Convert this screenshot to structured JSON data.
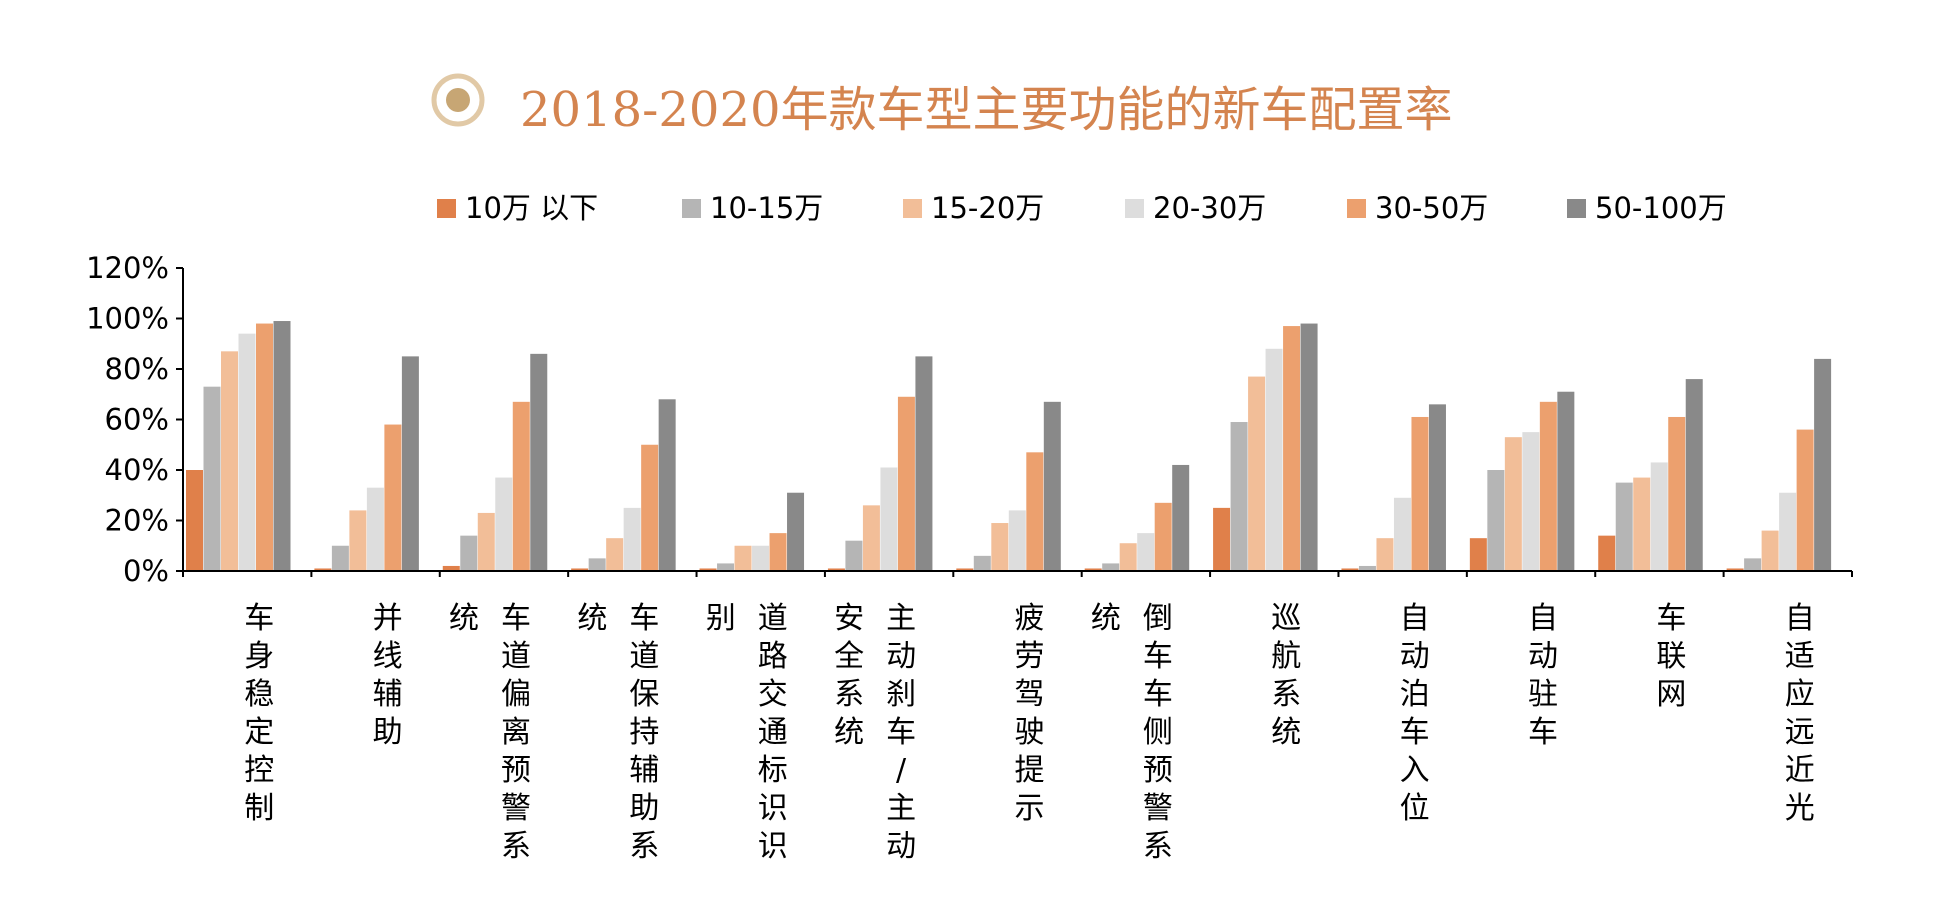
{
  "chart_data": {
    "type": "bar",
    "title": "2018-2020年款车型主要功能的新车配置率",
    "categories": [
      "车身稳定控制",
      "并线辅助",
      "车道偏离预警系统",
      "车道保持辅助系统",
      "道路交通标识识别",
      "主动刹车/主动安全系统",
      "疲劳驾驶提示",
      "倒车车侧预警系统",
      "巡航系统",
      "自动泊车入位",
      "自动驻车",
      "车联网",
      "自适应远近光"
    ],
    "series": [
      {
        "name": "10万 以下",
        "color": "#E0804A",
        "values": [
          40,
          1,
          2,
          1,
          1,
          1,
          1,
          1,
          25,
          1,
          13,
          14,
          1
        ]
      },
      {
        "name": "10-15万",
        "color": "#B5B5B5",
        "values": [
          73,
          10,
          14,
          5,
          3,
          12,
          6,
          3,
          59,
          2,
          40,
          35,
          5
        ]
      },
      {
        "name": "15-20万",
        "color": "#F2BE98",
        "values": [
          87,
          24,
          23,
          13,
          10,
          26,
          19,
          11,
          77,
          13,
          53,
          37,
          16
        ]
      },
      {
        "name": "20-30万",
        "color": "#DDDDDD",
        "values": [
          94,
          33,
          37,
          25,
          10,
          41,
          24,
          15,
          88,
          29,
          55,
          43,
          31
        ]
      },
      {
        "name": "30-50万",
        "color": "#ECA06E",
        "values": [
          98,
          58,
          67,
          50,
          15,
          69,
          47,
          27,
          97,
          61,
          67,
          61,
          56
        ]
      },
      {
        "name": "50-100万",
        "color": "#898989",
        "values": [
          99,
          85,
          86,
          68,
          31,
          85,
          67,
          42,
          98,
          66,
          71,
          76,
          84
        ]
      }
    ],
    "ylim": [
      0,
      120
    ],
    "yticks": [
      "0%",
      "20%",
      "40%",
      "60%",
      "80%",
      "100%",
      "120%"
    ],
    "legend_position": "top",
    "grid": false,
    "colors": {
      "title": "#D4844F",
      "icon_outer": "#E1C9A6",
      "icon_inner": "#C7A674",
      "axis": "#000000"
    }
  }
}
